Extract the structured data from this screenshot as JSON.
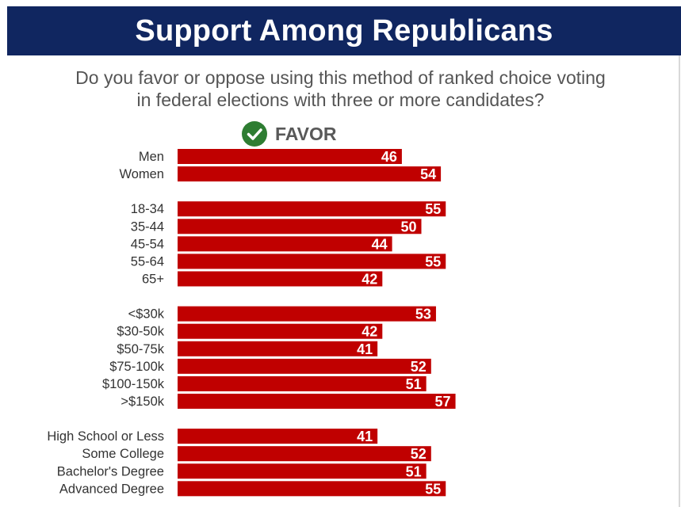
{
  "header": {
    "title": "Support Among Republicans"
  },
  "question": {
    "line1": "Do you favor or oppose using this method of ranked choice voting",
    "line2": "in federal elections with three or more candidates?"
  },
  "legend": {
    "label": "FAVOR",
    "icon": "check-circle-icon",
    "icon_color": "#2e7d32"
  },
  "colors": {
    "header_bg": "#102660",
    "bar": "#c00000",
    "bar_label": "#ffffff",
    "category_text": "#333333"
  },
  "chart_data": {
    "type": "bar",
    "orientation": "horizontal",
    "title": "",
    "xlabel": "",
    "ylabel": "",
    "grid": false,
    "series": [
      {
        "name": "FAVOR"
      }
    ],
    "groups": [
      {
        "categories": [
          "Men",
          "Women"
        ],
        "values": [
          46,
          54
        ]
      },
      {
        "categories": [
          "18-34",
          "35-44",
          "45-54",
          "55-64",
          "65+"
        ],
        "values": [
          55,
          50,
          44,
          55,
          42
        ]
      },
      {
        "categories": [
          "<$30k",
          "$30-50k",
          "$50-75k",
          "$75-100k",
          "$100-150k",
          ">$150k"
        ],
        "values": [
          53,
          42,
          41,
          52,
          51,
          57
        ]
      },
      {
        "categories": [
          "High School or Less",
          "Some College",
          "Bachelor's Degree",
          "Advanced Degree"
        ],
        "values": [
          41,
          52,
          51,
          55
        ]
      }
    ]
  }
}
